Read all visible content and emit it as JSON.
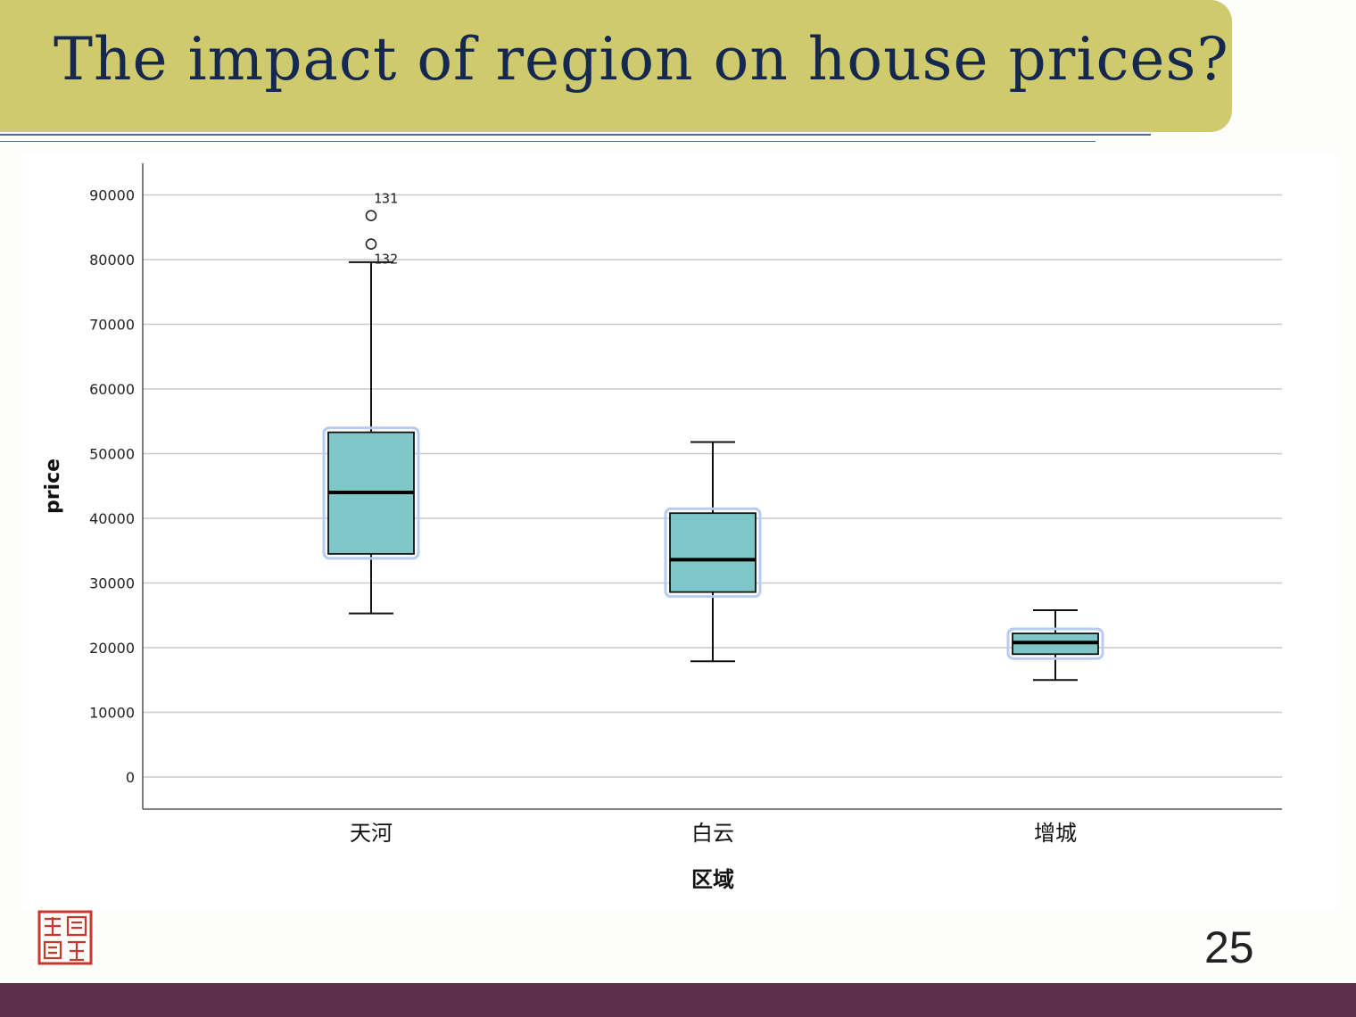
{
  "slide": {
    "title": "The impact of region on house prices?",
    "page_number": "25"
  },
  "colors": {
    "title_band": "#cfca6e",
    "title_text": "#15284f",
    "box_fill": "#7fc6c9",
    "footer": "#5d2f4a"
  },
  "chart_data": {
    "type": "boxplot",
    "xlabel": "区域",
    "ylabel": "price",
    "ylim": [
      -5000,
      95000
    ],
    "yticks": [
      0,
      10000,
      20000,
      30000,
      40000,
      50000,
      60000,
      70000,
      80000,
      90000
    ],
    "grid": true,
    "categories": [
      "天河",
      "白云",
      "增城"
    ],
    "boxes": [
      {
        "category": "天河",
        "whisker_low": 25300,
        "q1": 34500,
        "median": 44000,
        "q3": 53300,
        "whisker_high": 79600,
        "outliers": [
          {
            "id": "131",
            "value": 86800
          },
          {
            "id": "132",
            "value": 82400
          }
        ]
      },
      {
        "category": "白云",
        "whisker_low": 17900,
        "q1": 28600,
        "median": 33600,
        "q3": 40800,
        "whisker_high": 51800,
        "outliers": []
      },
      {
        "category": "增城",
        "whisker_low": 15000,
        "q1": 19000,
        "median": 20800,
        "q3": 22200,
        "whisker_high": 25800,
        "outliers": []
      }
    ]
  }
}
